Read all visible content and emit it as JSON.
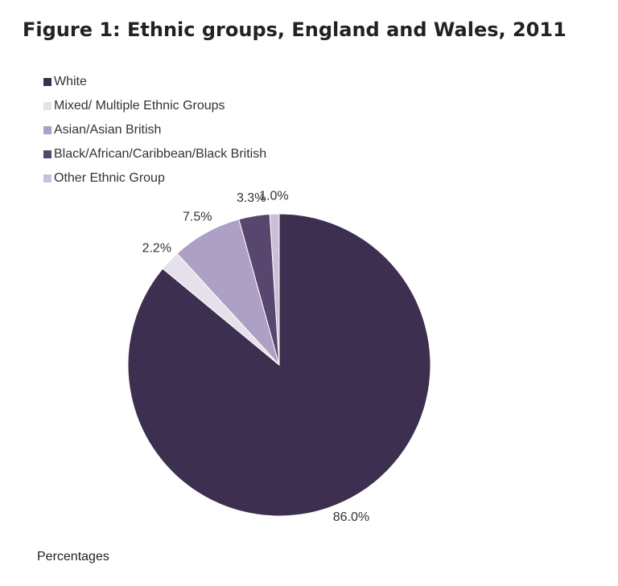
{
  "chart_data": {
    "type": "pie",
    "title": "Figure 1: Ethnic groups, England and Wales, 2011",
    "categories": [
      "White",
      "Mixed/ Multiple Ethnic Groups",
      "Asian/Asian British",
      "Black/African/Caribbean/Black British",
      "Other Ethnic Group"
    ],
    "values": [
      86.0,
      2.2,
      7.5,
      3.3,
      1.0
    ],
    "value_labels": [
      "86.0%",
      "2.2%",
      "7.5%",
      "3.3%",
      "1.0%"
    ],
    "colors": [
      "#3d2f4f",
      "#e4e1ea",
      "#ae9fc4",
      "#58466f",
      "#c9c0d8"
    ],
    "legend": "top-left",
    "note": "Percentages"
  }
}
